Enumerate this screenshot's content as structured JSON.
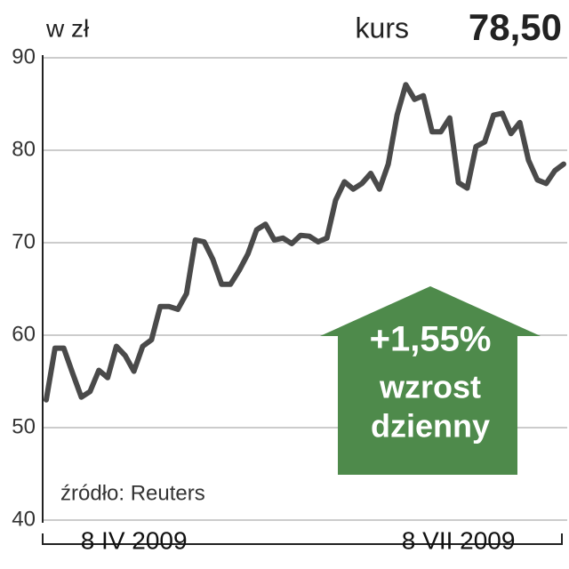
{
  "chart_data": {
    "type": "line",
    "unit_label": "w zł",
    "kurs_label": "kurs",
    "kurs_value": "78,50",
    "annotations": [
      "+1,55%",
      "wzrost",
      "dzienny"
    ],
    "source": "źródło: Reuters",
    "categories": [
      null,
      null,
      null,
      null,
      null,
      null,
      null,
      null,
      null,
      null,
      "8 IV 2009",
      null,
      null,
      null,
      null,
      null,
      null,
      null,
      null,
      null,
      null,
      null,
      null,
      null,
      null,
      null,
      null,
      null,
      null,
      null,
      null,
      null,
      null,
      null,
      null,
      null,
      null,
      null,
      null,
      null,
      null,
      null,
      null,
      null,
      null,
      null,
      null,
      "8 VII 2009",
      null,
      null,
      null,
      null,
      null,
      null,
      null,
      null,
      null,
      null,
      null,
      null
    ],
    "series": [
      {
        "name": "kurs",
        "color": "#4a4a4a",
        "values": [
          53.0,
          58.6,
          58.6,
          55.9,
          53.3,
          53.9,
          56.2,
          55.4,
          58.8,
          57.8,
          56.1,
          58.8,
          59.5,
          63.1,
          63.1,
          62.8,
          64.5,
          70.3,
          70.1,
          68.2,
          65.5,
          65.5,
          67.0,
          68.8,
          71.4,
          72.0,
          70.3,
          70.5,
          69.9,
          70.8,
          70.7,
          70.1,
          70.5,
          74.6,
          76.6,
          75.8,
          76.4,
          77.5,
          75.8,
          78.5,
          83.8,
          87.1,
          85.5,
          85.9,
          82.0,
          82.0,
          83.5,
          76.5,
          75.9,
          80.4,
          80.9,
          83.8,
          84.0,
          81.8,
          83.0,
          78.9,
          76.8,
          76.4,
          77.8,
          78.5
        ]
      }
    ],
    "ylim": [
      40,
      90
    ],
    "yticks": [
      40,
      50,
      60,
      70,
      80,
      90
    ],
    "grid": true
  }
}
